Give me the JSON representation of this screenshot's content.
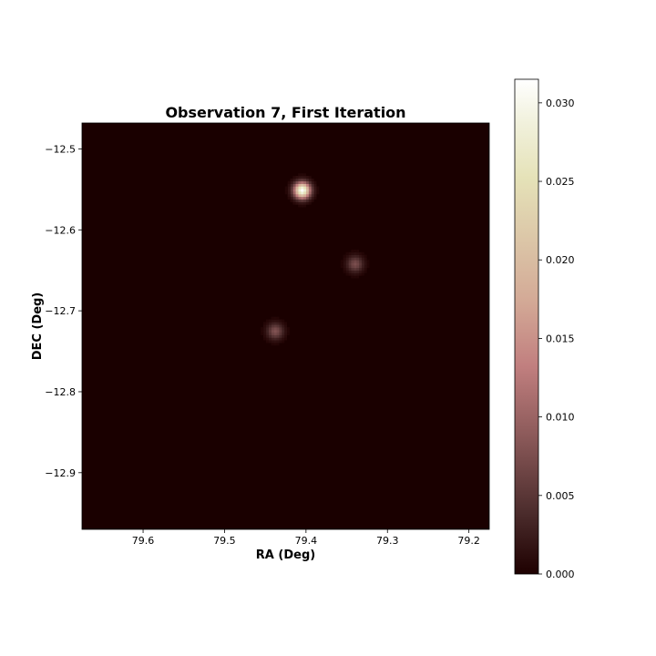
{
  "chart_data": {
    "type": "heatmap",
    "title": "Observation 7, First Iteration",
    "xlabel": "RA (Deg)",
    "ylabel": "DEC (Deg)",
    "xlim": [
      79.675,
      79.175
    ],
    "ylim": [
      -12.97,
      -12.468
    ],
    "x_ticks": [
      79.6,
      79.5,
      79.4,
      79.3,
      79.2
    ],
    "x_tick_labels": [
      "79.6",
      "79.5",
      "79.4",
      "79.3",
      "79.2"
    ],
    "y_ticks": [
      -12.5,
      -12.6,
      -12.7,
      -12.8,
      -12.9
    ],
    "y_tick_labels": [
      "−12.5",
      "−12.6",
      "−12.7",
      "−12.8",
      "−12.9"
    ],
    "sources": [
      {
        "ra": 79.405,
        "dec": -12.551,
        "peak": 0.0315
      },
      {
        "ra": 79.34,
        "dec": -12.642,
        "peak": 0.0075
      },
      {
        "ra": 79.438,
        "dec": -12.725,
        "peak": 0.008
      }
    ],
    "colorbar": {
      "colormap": "pink",
      "min": 0.0,
      "max": 0.0315,
      "ticks": [
        0.0,
        0.005,
        0.01,
        0.015,
        0.02,
        0.025,
        0.03
      ],
      "tick_labels": [
        "0.000",
        "0.005",
        "0.010",
        "0.015",
        "0.020",
        "0.025",
        "0.030"
      ]
    },
    "background_color": "#1a0000"
  }
}
